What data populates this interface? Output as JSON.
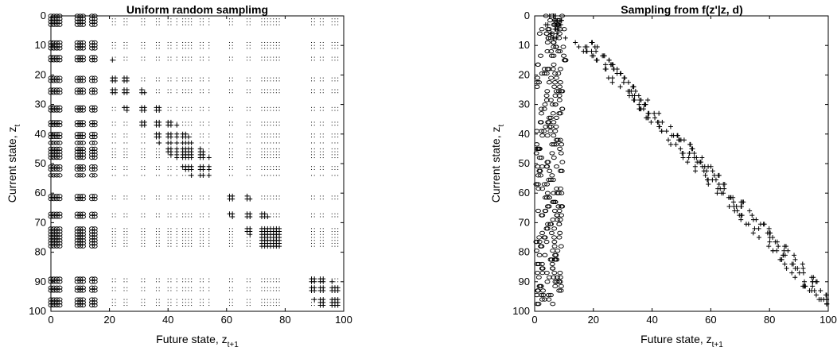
{
  "chart_data": [
    {
      "type": "scatter",
      "title": "Uniform random samplimg",
      "xlabel": "Future state, z",
      "xlabel_sub": "t+1",
      "ylabel": "Current state, z",
      "ylabel_sub": "t",
      "xlim": [
        0,
        100
      ],
      "ylim": [
        0,
        100
      ],
      "y_reversed": true,
      "xticks": [
        "0",
        "20",
        "40",
        "60",
        "80",
        "100"
      ],
      "yticks": [
        "0",
        "10",
        "20",
        "30",
        "40",
        "50",
        "60",
        "70",
        "80",
        "90",
        "100"
      ],
      "grid": false,
      "state_points": [
        0,
        1,
        2,
        3,
        9,
        10,
        11,
        14,
        15,
        21,
        22,
        25,
        26,
        31,
        32,
        36,
        37,
        40,
        41,
        43,
        45,
        46,
        47,
        48,
        51,
        52,
        54,
        61,
        62,
        67,
        68,
        72,
        73,
        74,
        75,
        76,
        77,
        78,
        89,
        90,
        92,
        93,
        96,
        97,
        98
      ],
      "series": [
        {
          "marker": "dot",
          "points": "all state_points pairs"
        },
        {
          "marker": "circle",
          "x": [
            0,
            1,
            2,
            3,
            9,
            10,
            11,
            14,
            15
          ],
          "y_state_points": "all"
        },
        {
          "marker": "plus",
          "diagonal_band_width": 6,
          "x_min": 20
        }
      ]
    },
    {
      "type": "scatter",
      "title": "Sampling from f(z'|z, d)",
      "xlabel": "Future state, z",
      "xlabel_sub": "t+1",
      "ylabel": "Current state, z",
      "ylabel_sub": "t",
      "xlim": [
        0,
        100
      ],
      "ylim": [
        0,
        100
      ],
      "y_reversed": true,
      "xticks": [
        "0",
        "20",
        "40",
        "60",
        "80",
        "100"
      ],
      "yticks": [
        "0",
        "10",
        "20",
        "30",
        "40",
        "50",
        "60",
        "70",
        "80",
        "90",
        "100"
      ],
      "grid": false,
      "series": [
        {
          "marker": "circle",
          "x_range": [
            0,
            11
          ],
          "y_range": [
            0,
            98
          ]
        },
        {
          "marker": "plus",
          "x_start": 1,
          "x_end": 99,
          "y_start": 0,
          "y_end": 98,
          "shape": "diagonal band from (16,10) to (99,98)"
        }
      ]
    }
  ]
}
